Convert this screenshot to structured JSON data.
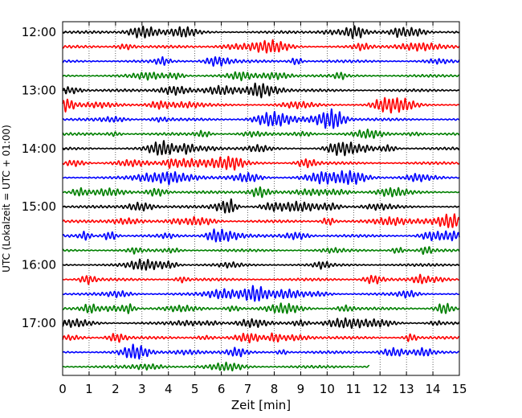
{
  "chart_data": {
    "type": "line",
    "title": "",
    "xlabel": "Zeit  [min]",
    "ylabel": "UTC (Lokalzeit = UTC + 01:00)",
    "xlim": [
      0,
      15
    ],
    "x_ticks": [
      "0",
      "1",
      "2",
      "3",
      "4",
      "5",
      "6",
      "7",
      "8",
      "9",
      "10",
      "11",
      "12",
      "13",
      "14",
      "15"
    ],
    "y_ticks": [
      "12:00",
      "13:00",
      "14:00",
      "15:00",
      "16:00",
      "17:00"
    ],
    "trace_interval_min": 15,
    "traces_start": "12:00",
    "last_trace_end_min": 11.6,
    "grid": "x-dotted",
    "series_colors": [
      "#000000",
      "#ff0000",
      "#0000ff",
      "#008000"
    ],
    "legend": "none"
  }
}
